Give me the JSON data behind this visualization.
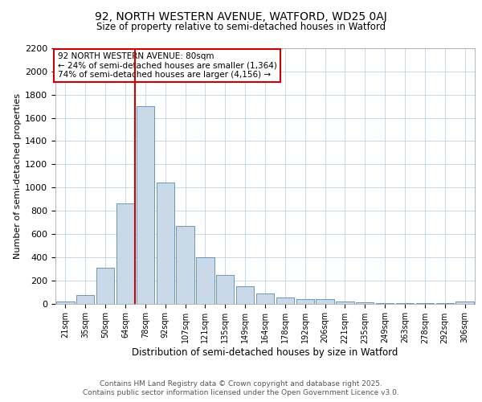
{
  "title_line1": "92, NORTH WESTERN AVENUE, WATFORD, WD25 0AJ",
  "title_line2": "Size of property relative to semi-detached houses in Watford",
  "xlabel": "Distribution of semi-detached houses by size in Watford",
  "ylabel": "Number of semi-detached properties",
  "categories": [
    "21sqm",
    "35sqm",
    "50sqm",
    "64sqm",
    "78sqm",
    "92sqm",
    "107sqm",
    "121sqm",
    "135sqm",
    "149sqm",
    "164sqm",
    "178sqm",
    "192sqm",
    "206sqm",
    "221sqm",
    "235sqm",
    "249sqm",
    "263sqm",
    "278sqm",
    "292sqm",
    "306sqm"
  ],
  "values": [
    20,
    75,
    310,
    860,
    1700,
    1040,
    670,
    400,
    245,
    150,
    90,
    50,
    40,
    35,
    18,
    8,
    3,
    2,
    1,
    1,
    15
  ],
  "bar_color": "#c9d9e8",
  "bar_edge_color": "#5a8ab0",
  "vline_x": 3.5,
  "vline_color": "#cc0000",
  "annotation_title": "92 NORTH WESTERN AVENUE: 80sqm",
  "annotation_line1": "← 24% of semi-detached houses are smaller (1,364)",
  "annotation_line2": "74% of semi-detached houses are larger (4,156) →",
  "annotation_box_color": "#cc0000",
  "ylim": [
    0,
    2200
  ],
  "yticks": [
    0,
    200,
    400,
    600,
    800,
    1000,
    1200,
    1400,
    1600,
    1800,
    2000,
    2200
  ],
  "footer_line1": "Contains HM Land Registry data © Crown copyright and database right 2025.",
  "footer_line2": "Contains public sector information licensed under the Open Government Licence v3.0.",
  "bg_color": "#ffffff",
  "grid_color": "#c8d8e8"
}
